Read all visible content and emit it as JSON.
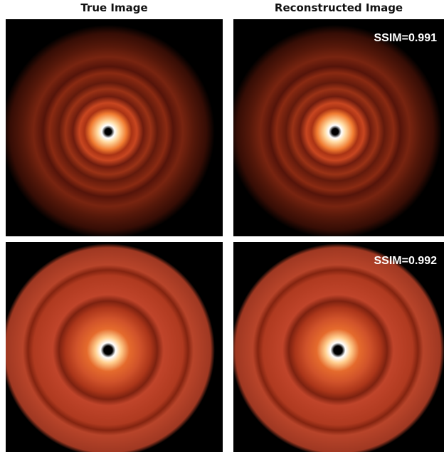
{
  "columns": [
    "True Image",
    "Reconstructed Image"
  ],
  "rows": [
    {
      "ssim_label": "SSIM=0.991"
    },
    {
      "ssim_label": "SSIM=0.992"
    }
  ]
}
